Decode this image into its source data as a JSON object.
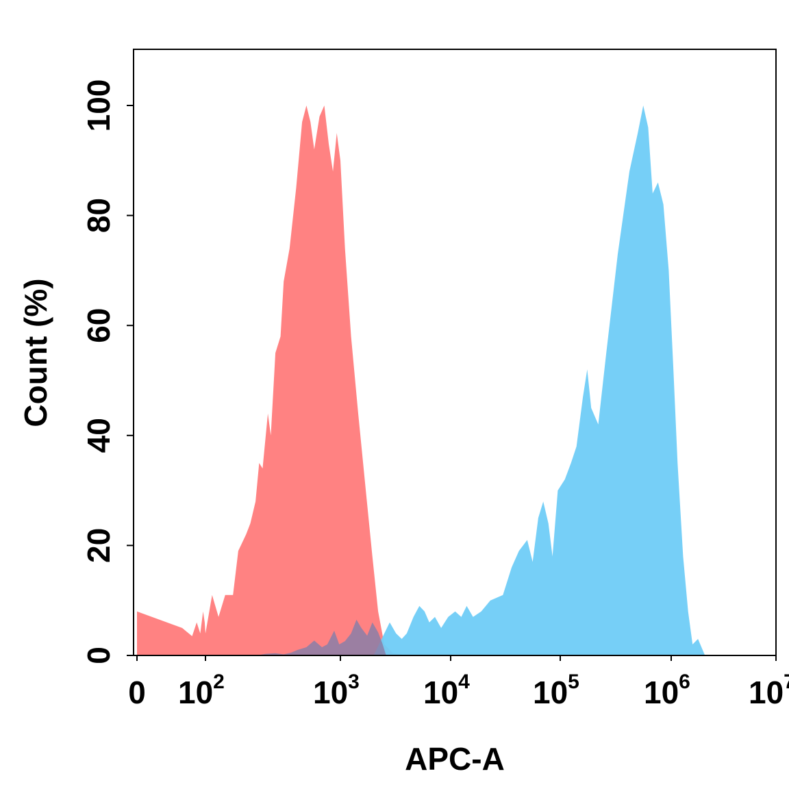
{
  "chart_data": {
    "type": "area",
    "xlabel": "APC-A",
    "ylabel": "Count  (%)",
    "x_scale": "log",
    "x_range": [
      0,
      10000000
    ],
    "ylim": [
      0,
      110
    ],
    "x_ticks": [
      {
        "value": 0,
        "label": "0",
        "exp": ""
      },
      {
        "value": 100,
        "label": "10",
        "exp": "2"
      },
      {
        "value": 1000,
        "label": "10",
        "exp": "3"
      },
      {
        "value": 10000,
        "label": "10",
        "exp": "4"
      },
      {
        "value": 100000,
        "label": "10",
        "exp": "5"
      },
      {
        "value": 1000000,
        "label": "10",
        "exp": "6"
      },
      {
        "value": 10000000,
        "label": "10",
        "exp": "7"
      }
    ],
    "y_ticks": [
      0,
      20,
      40,
      60,
      80,
      100
    ],
    "series": [
      {
        "color": "#FF7B7B",
        "points": [
          [
            0,
            8
          ],
          [
            20,
            5
          ],
          [
            40,
            3.5
          ],
          [
            55,
            6
          ],
          [
            70,
            4
          ],
          [
            85,
            8
          ],
          [
            95,
            6
          ],
          [
            100,
            4
          ],
          [
            112,
            11
          ],
          [
            125,
            7
          ],
          [
            140,
            11
          ],
          [
            160,
            11
          ],
          [
            175,
            19
          ],
          [
            200,
            22
          ],
          [
            215,
            24
          ],
          [
            235,
            28
          ],
          [
            250,
            35
          ],
          [
            265,
            34
          ],
          [
            290,
            44
          ],
          [
            305,
            40
          ],
          [
            330,
            55
          ],
          [
            360,
            58
          ],
          [
            380,
            68
          ],
          [
            420,
            74
          ],
          [
            470,
            85
          ],
          [
            520,
            97
          ],
          [
            560,
            100
          ],
          [
            600,
            97
          ],
          [
            640,
            92
          ],
          [
            700,
            98
          ],
          [
            760,
            100
          ],
          [
            820,
            93
          ],
          [
            880,
            88
          ],
          [
            940,
            95
          ],
          [
            1000,
            90
          ],
          [
            1100,
            74
          ],
          [
            1250,
            58
          ],
          [
            1450,
            44
          ],
          [
            1700,
            30
          ],
          [
            1950,
            18
          ],
          [
            2200,
            8
          ],
          [
            2500,
            2
          ],
          [
            3000,
            0.4
          ],
          [
            4000,
            0
          ]
        ]
      },
      {
        "color": "#6FCCF7",
        "points": [
          [
            2000,
            0
          ],
          [
            2500,
            4
          ],
          [
            2800,
            6
          ],
          [
            3200,
            4
          ],
          [
            3600,
            3
          ],
          [
            4000,
            4
          ],
          [
            4600,
            7
          ],
          [
            5200,
            9
          ],
          [
            5800,
            8
          ],
          [
            6400,
            6
          ],
          [
            7200,
            7
          ],
          [
            8200,
            5
          ],
          [
            9500,
            7
          ],
          [
            11000,
            8
          ],
          [
            12500,
            7
          ],
          [
            14000,
            9
          ],
          [
            16000,
            7
          ],
          [
            19000,
            8
          ],
          [
            23000,
            10
          ],
          [
            30000,
            11
          ],
          [
            36000,
            16
          ],
          [
            42000,
            19
          ],
          [
            50000,
            21
          ],
          [
            56000,
            17
          ],
          [
            63000,
            25
          ],
          [
            70000,
            28
          ],
          [
            78000,
            24
          ],
          [
            85000,
            18
          ],
          [
            95000,
            30
          ],
          [
            110000,
            32
          ],
          [
            125000,
            35
          ],
          [
            140000,
            38
          ],
          [
            160000,
            47
          ],
          [
            175000,
            52
          ],
          [
            190000,
            45
          ],
          [
            220000,
            42
          ],
          [
            260000,
            55
          ],
          [
            330000,
            73
          ],
          [
            420000,
            88
          ],
          [
            500000,
            95
          ],
          [
            560000,
            100
          ],
          [
            620000,
            96
          ],
          [
            680000,
            84
          ],
          [
            760000,
            86
          ],
          [
            850000,
            82
          ],
          [
            950000,
            70
          ],
          [
            1050000,
            52
          ],
          [
            1150000,
            35
          ],
          [
            1300000,
            18
          ],
          [
            1450000,
            8
          ],
          [
            1600000,
            2
          ],
          [
            1800000,
            3
          ],
          [
            2100000,
            0
          ]
        ]
      },
      {
        "color": "#8A7FA8",
        "points": [
          [
            240,
            0
          ],
          [
            280,
            0.3
          ],
          [
            330,
            0.4
          ],
          [
            380,
            0.2
          ],
          [
            430,
            0.5
          ],
          [
            480,
            1
          ],
          [
            560,
            1.5
          ],
          [
            640,
            2.7
          ],
          [
            730,
            1.5
          ],
          [
            800,
            2
          ],
          [
            900,
            4.5
          ],
          [
            980,
            2
          ],
          [
            1100,
            2.6
          ],
          [
            1250,
            4
          ],
          [
            1400,
            6.5
          ],
          [
            1550,
            5
          ],
          [
            1750,
            3.6
          ],
          [
            1950,
            6
          ],
          [
            2200,
            4.2
          ],
          [
            2400,
            2.2
          ],
          [
            2600,
            0
          ]
        ]
      }
    ]
  }
}
